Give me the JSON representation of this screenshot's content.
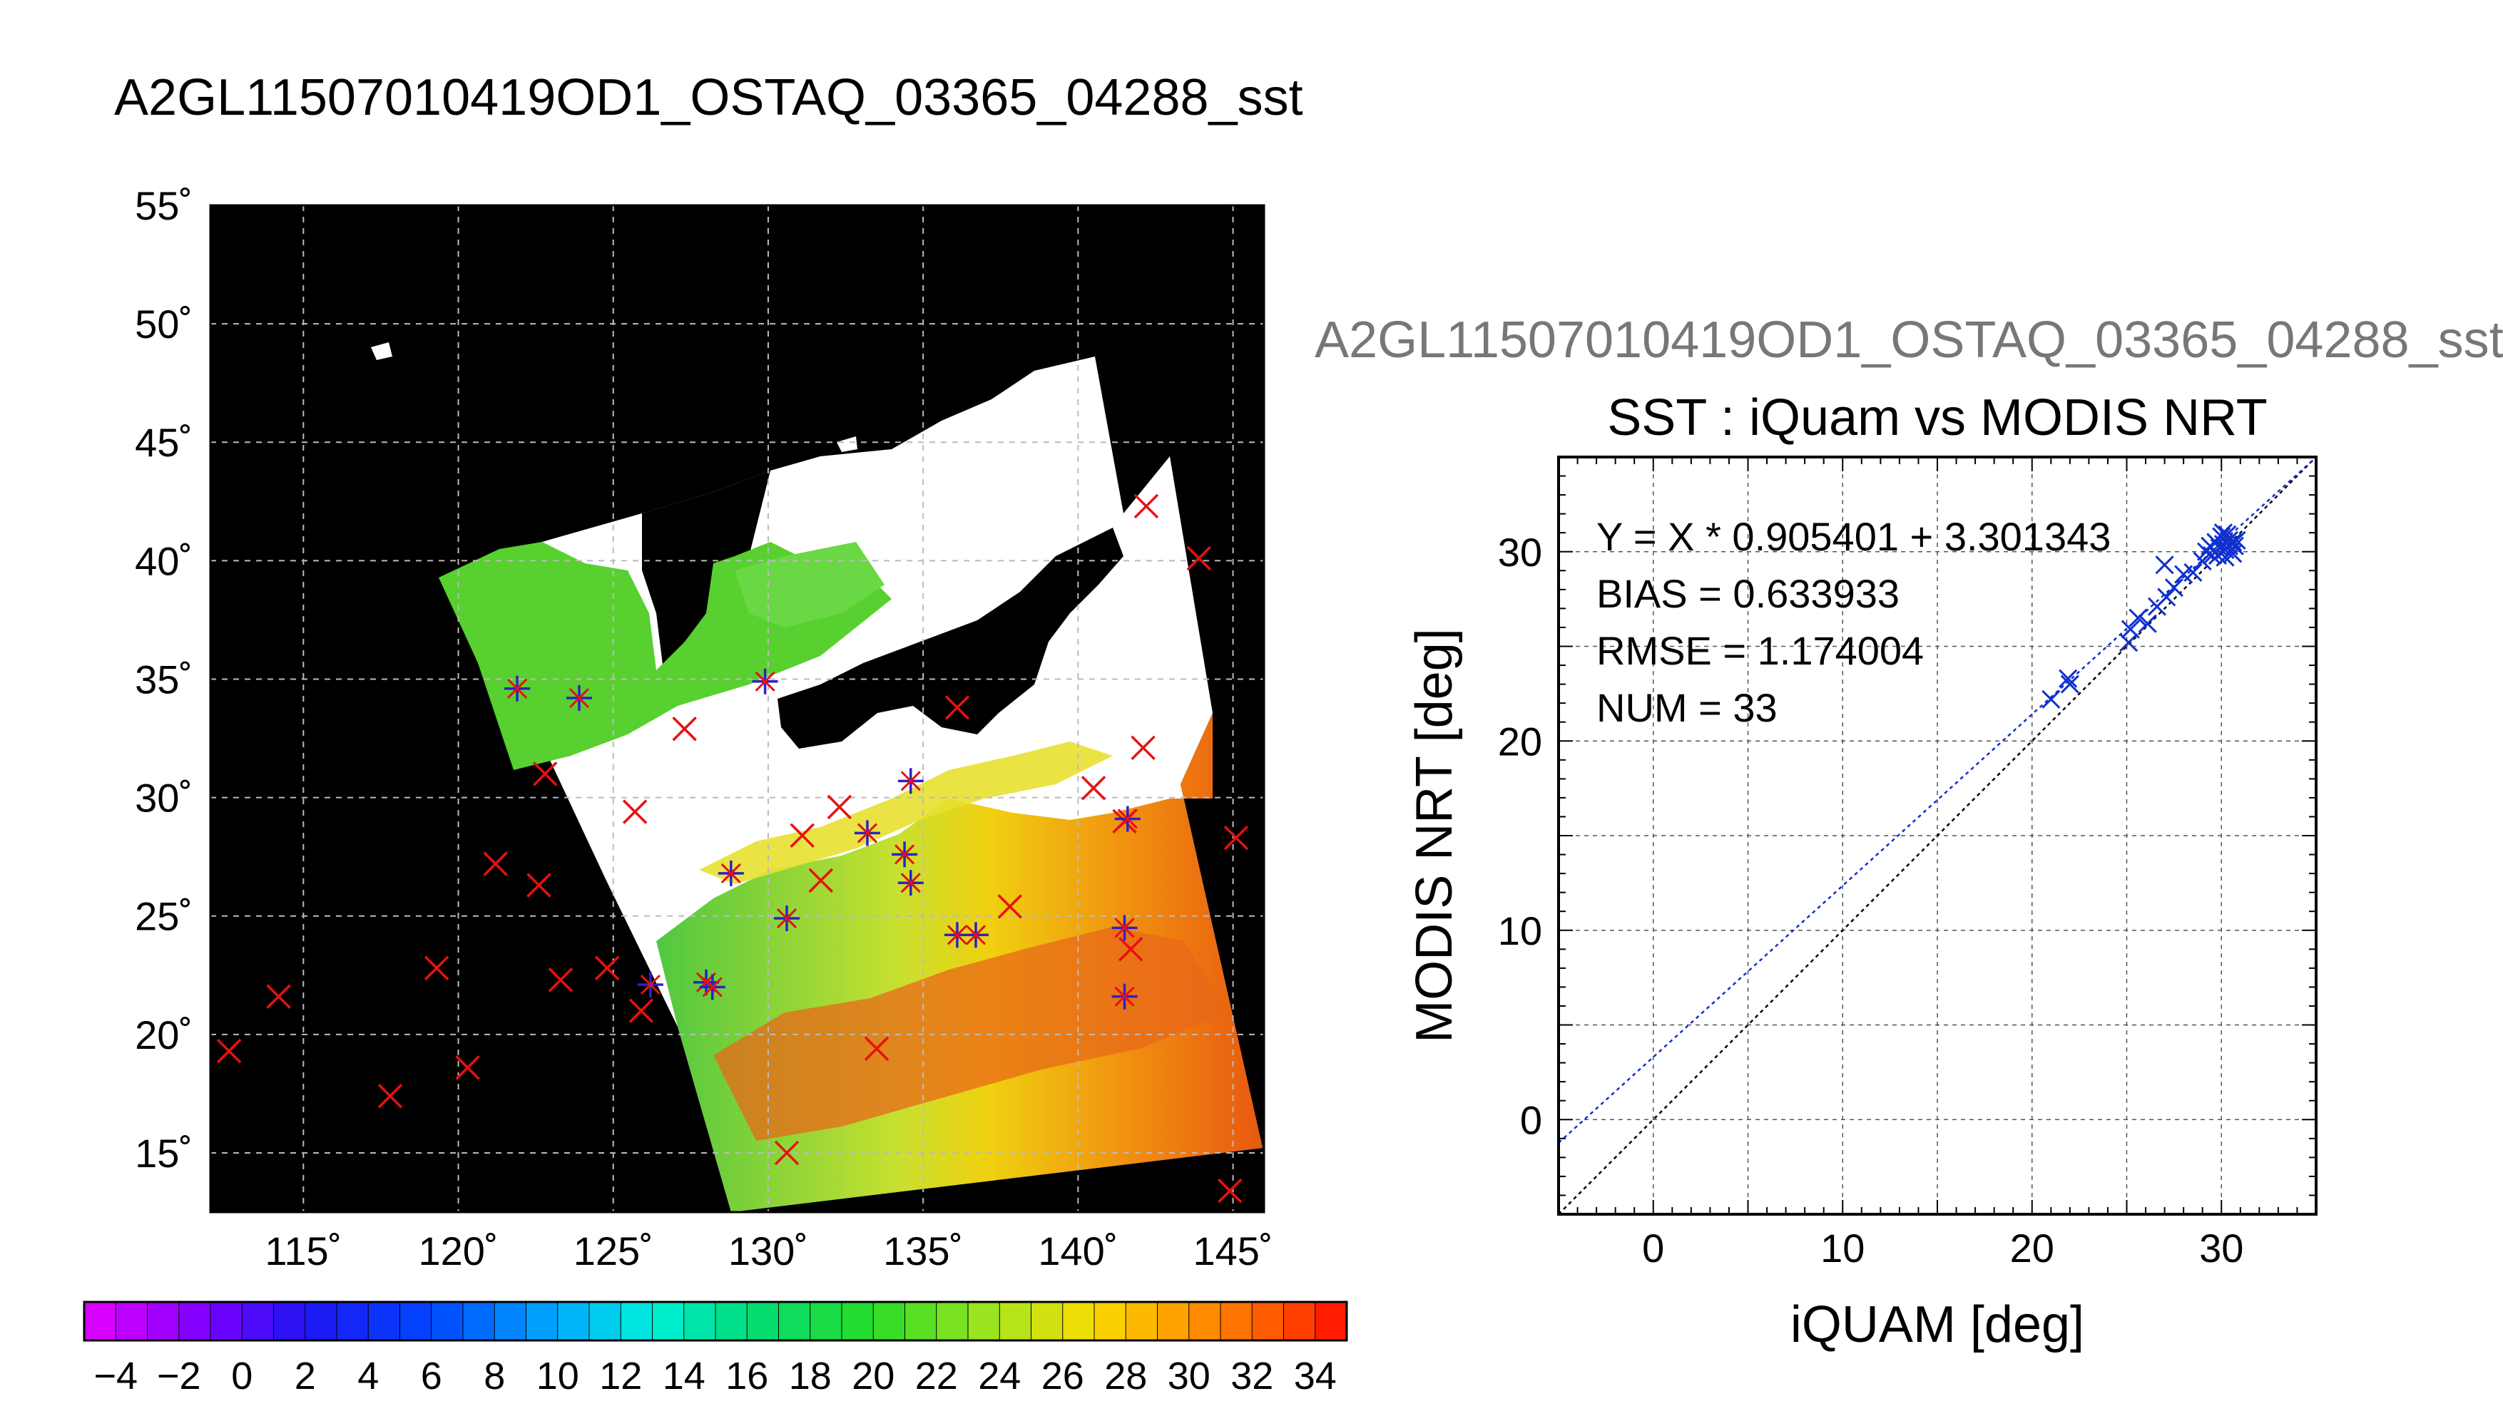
{
  "figure_title": "A2GL11507010419OD1_OSTAQ_03365_04288_sst",
  "scatter_suptitle": "A2GL11507010419OD1_OSTAQ_03365_04288_sst",
  "colors": {
    "land_fill": "#ffffff",
    "background": "#000000",
    "grid": "#bbbbbb",
    "buoy_marker": "#e81010",
    "match_marker": "#3020c8",
    "fit_line": "#1030d0",
    "one_to_one": "#000000"
  },
  "chart_data": [
    {
      "type": "map",
      "xlim": [
        112,
        146
      ],
      "ylim": [
        12.5,
        55
      ],
      "x_ticks": [
        115,
        120,
        125,
        130,
        135,
        140,
        145
      ],
      "y_ticks": [
        15,
        20,
        25,
        30,
        35,
        40,
        45,
        50,
        55
      ],
      "x_tick_labels": [
        "115˚",
        "120˚",
        "125˚",
        "130˚",
        "135˚",
        "140˚",
        "145˚"
      ],
      "y_tick_labels": [
        "15˚",
        "20˚",
        "25˚",
        "30˚",
        "35˚",
        "40˚",
        "45˚",
        "50˚",
        "55˚"
      ],
      "grid": true,
      "in_situ_points": [
        [
          112.6,
          19.3
        ],
        [
          114.2,
          21.6
        ],
        [
          117.8,
          17.4
        ],
        [
          119.3,
          22.8
        ],
        [
          120.3,
          18.6
        ],
        [
          121.2,
          27.2
        ],
        [
          122.6,
          26.3
        ],
        [
          122.8,
          31.0
        ],
        [
          123.3,
          22.3
        ],
        [
          124.8,
          22.8
        ],
        [
          125.7,
          29.4
        ],
        [
          125.9,
          21.0
        ],
        [
          127.3,
          32.9
        ],
        [
          130.6,
          15.0
        ],
        [
          131.1,
          28.4
        ],
        [
          131.7,
          26.5
        ],
        [
          132.3,
          29.6
        ],
        [
          133.5,
          19.4
        ],
        [
          136.1,
          33.8
        ],
        [
          137.8,
          25.4
        ],
        [
          140.5,
          30.4
        ],
        [
          141.5,
          29.0
        ],
        [
          141.7,
          23.6
        ],
        [
          142.1,
          32.1
        ],
        [
          142.2,
          42.3
        ],
        [
          143.9,
          40.1
        ],
        [
          144.9,
          13.4
        ],
        [
          145.1,
          28.3
        ]
      ],
      "matched_points": [
        [
          121.9,
          34.6
        ],
        [
          123.9,
          34.2
        ],
        [
          129.9,
          34.9
        ],
        [
          128.8,
          26.8
        ],
        [
          130.6,
          24.9
        ],
        [
          133.2,
          28.5
        ],
        [
          134.4,
          27.6
        ],
        [
          134.6,
          26.4
        ],
        [
          134.6,
          30.7
        ],
        [
          136.1,
          24.2
        ],
        [
          136.7,
          24.2
        ],
        [
          126.2,
          22.1
        ],
        [
          128.0,
          22.2
        ],
        [
          128.2,
          22.0
        ],
        [
          141.5,
          24.5
        ],
        [
          141.5,
          21.6
        ],
        [
          141.6,
          29.1
        ]
      ]
    },
    {
      "type": "colorbar",
      "min": -5,
      "max": 35,
      "tick_labels": [
        "−4",
        "−2",
        "0",
        "2",
        "4",
        "6",
        "8",
        "10",
        "12",
        "14",
        "16",
        "18",
        "20",
        "22",
        "24",
        "26",
        "28",
        "30",
        "32",
        "34"
      ],
      "tick_values": [
        -4,
        -2,
        0,
        2,
        4,
        6,
        8,
        10,
        12,
        14,
        16,
        18,
        20,
        22,
        24,
        26,
        28,
        30,
        32,
        34
      ]
    },
    {
      "type": "scatter",
      "title": "SST : iQuam vs MODIS NRT",
      "xlabel": "iQUAM [deg]",
      "ylabel": "MODIS NRT [deg]",
      "xlim": [
        -5,
        35
      ],
      "ylim": [
        -5,
        35
      ],
      "x_ticks": [
        0,
        10,
        20,
        30
      ],
      "y_ticks": [
        0,
        10,
        20,
        30
      ],
      "grid": true,
      "stats": {
        "fit": "Y = X * 0.905401 + 3.301343",
        "bias": "BIAS = 0.633933",
        "rmse": "RMSE = 1.174004",
        "num": "NUM = 33"
      },
      "fit_slope": 0.905401,
      "fit_intercept": 3.301343,
      "points": [
        [
          21.0,
          22.2
        ],
        [
          21.9,
          23.3
        ],
        [
          22.0,
          23.0
        ],
        [
          25.1,
          25.2
        ],
        [
          25.2,
          25.9
        ],
        [
          25.6,
          26.5
        ],
        [
          26.1,
          26.2
        ],
        [
          26.6,
          27.1
        ],
        [
          27.1,
          27.6
        ],
        [
          27.5,
          28.1
        ],
        [
          28.0,
          28.8
        ],
        [
          28.5,
          28.9
        ],
        [
          29.0,
          29.5
        ],
        [
          29.2,
          30.0
        ],
        [
          29.4,
          30.3
        ],
        [
          29.5,
          29.8
        ],
        [
          29.7,
          30.5
        ],
        [
          29.8,
          29.8
        ],
        [
          29.9,
          30.2
        ],
        [
          30.0,
          30.8
        ],
        [
          30.1,
          31.0
        ],
        [
          30.1,
          30.4
        ],
        [
          30.2,
          30.1
        ],
        [
          30.2,
          29.7
        ],
        [
          30.3,
          30.9
        ],
        [
          30.4,
          30.3
        ],
        [
          30.4,
          30.6
        ],
        [
          30.5,
          30.0
        ],
        [
          30.6,
          30.5
        ],
        [
          30.6,
          29.9
        ],
        [
          30.7,
          30.3
        ],
        [
          30.8,
          30.6
        ],
        [
          27.0,
          29.3
        ]
      ]
    }
  ]
}
